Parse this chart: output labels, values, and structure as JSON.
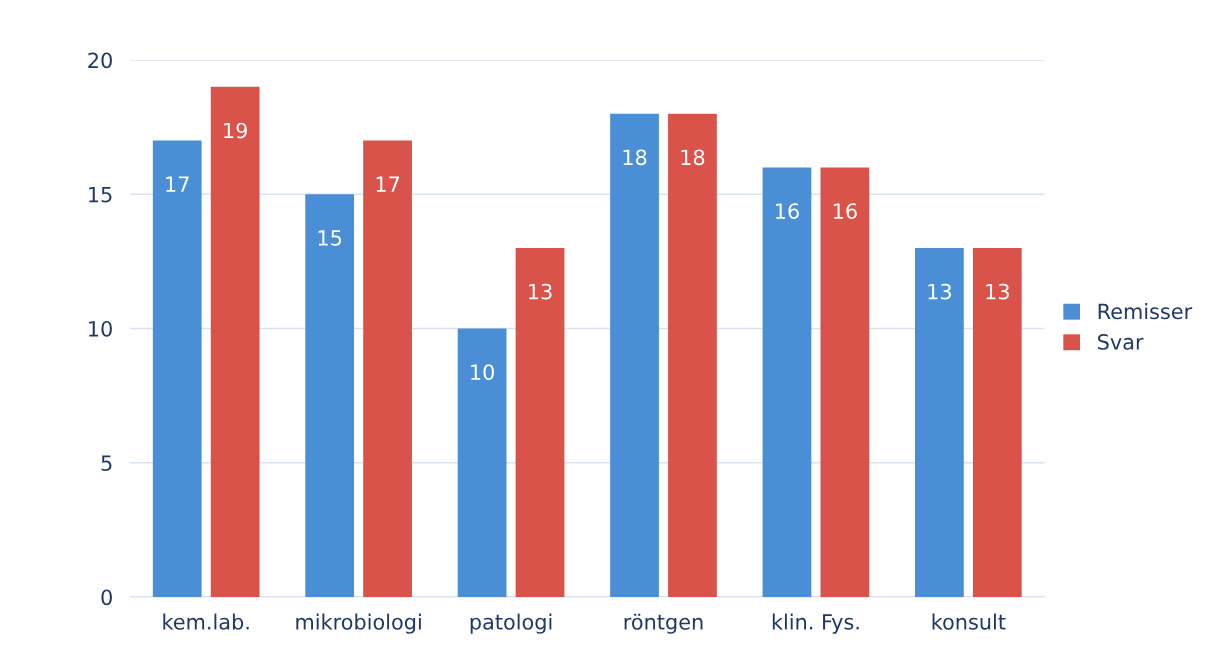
{
  "chart_data": {
    "type": "bar",
    "categories": [
      "kem.lab.",
      "mikrobiologi",
      "patologi",
      "röntgen",
      "klin. Fys.",
      "konsult"
    ],
    "series": [
      {
        "name": "Remisser",
        "color": "#4a8fd6",
        "values": [
          17,
          15,
          10,
          18,
          16,
          13
        ]
      },
      {
        "name": "Svar",
        "color": "#d9534a",
        "values": [
          19,
          17,
          13,
          18,
          16,
          13
        ]
      }
    ],
    "ylim": [
      0,
      20
    ],
    "yticks": [
      0,
      5,
      10,
      15,
      20
    ],
    "grid": "y",
    "legend": "right",
    "data_labels": true
  }
}
